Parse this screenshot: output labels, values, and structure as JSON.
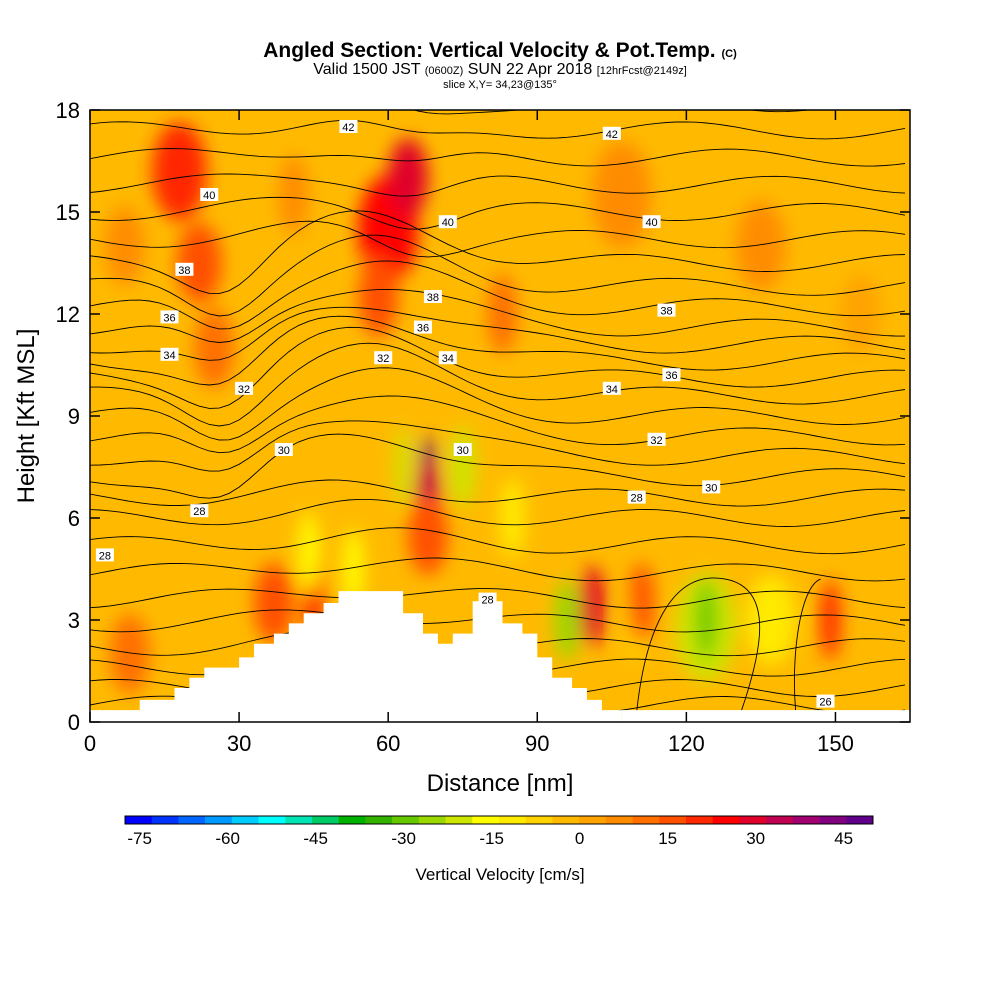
{
  "title": {
    "main": "Angled Section: Vertical Velocity & Pot.Temp.",
    "main_suffix": "(C)",
    "valid_prefix": "Valid 1500 JST",
    "valid_z": "(0600Z)",
    "valid_date": "SUN 22 Apr 2018",
    "valid_fcst": "[12hrFcst@2149z]",
    "slice": "slice X,Y= 34,23@135°"
  },
  "chart_data": {
    "type": "heatmap",
    "xlabel": "Distance [nm]",
    "ylabel": "Height [Kft MSL]",
    "xlim": [
      0,
      165
    ],
    "ylim": [
      0,
      18
    ],
    "x_ticks": [
      "0",
      "30",
      "60",
      "90",
      "120",
      "150"
    ],
    "x_tick_values": [
      0,
      30,
      60,
      90,
      120,
      150
    ],
    "y_ticks": [
      "0",
      "3",
      "6",
      "9",
      "12",
      "15",
      "18"
    ],
    "y_tick_values": [
      0,
      3,
      6,
      9,
      12,
      15,
      18
    ],
    "terrain": [
      [
        0,
        0.35
      ],
      [
        10,
        0.35
      ],
      [
        10,
        0.65
      ],
      [
        17,
        0.65
      ],
      [
        17,
        1.0
      ],
      [
        20,
        1.0
      ],
      [
        20,
        1.3
      ],
      [
        23,
        1.3
      ],
      [
        23,
        1.6
      ],
      [
        30,
        1.6
      ],
      [
        30,
        1.9
      ],
      [
        33,
        1.9
      ],
      [
        33,
        2.3
      ],
      [
        37,
        2.3
      ],
      [
        37,
        2.6
      ],
      [
        40,
        2.6
      ],
      [
        40,
        2.9
      ],
      [
        43,
        2.9
      ],
      [
        43,
        3.2
      ],
      [
        47,
        3.2
      ],
      [
        47,
        3.5
      ],
      [
        50,
        3.5
      ],
      [
        50,
        3.85
      ],
      [
        63,
        3.85
      ],
      [
        63,
        3.2
      ],
      [
        67,
        3.2
      ],
      [
        67,
        2.6
      ],
      [
        70,
        2.6
      ],
      [
        70,
        2.3
      ],
      [
        73,
        2.3
      ],
      [
        73,
        2.6
      ],
      [
        77,
        2.6
      ],
      [
        77,
        3.55
      ],
      [
        83,
        3.55
      ],
      [
        83,
        2.9
      ],
      [
        87,
        2.9
      ],
      [
        87,
        2.6
      ],
      [
        90,
        2.6
      ],
      [
        90,
        1.9
      ],
      [
        93,
        1.9
      ],
      [
        93,
        1.3
      ],
      [
        97,
        1.3
      ],
      [
        97,
        1.0
      ],
      [
        100,
        1.0
      ],
      [
        100,
        0.65
      ],
      [
        103,
        0.65
      ],
      [
        103,
        0.35
      ],
      [
        107,
        0.35
      ],
      [
        107,
        0
      ]
    ],
    "velocity_cells": [
      {
        "x": 18,
        "y": 16.2,
        "w": 11,
        "v": 22
      },
      {
        "x": 22,
        "y": 13.5,
        "w": 9,
        "v": 18
      },
      {
        "x": 25,
        "y": 11,
        "w": 8,
        "v": 12
      },
      {
        "x": 37,
        "y": 3.5,
        "w": 8,
        "v": 18
      },
      {
        "x": 45,
        "y": 3.7,
        "w": 4,
        "v": 22
      },
      {
        "x": 41,
        "y": 15.5,
        "w": 6,
        "v": 8
      },
      {
        "x": 60,
        "y": 14.5,
        "w": 12,
        "v": 26
      },
      {
        "x": 64,
        "y": 16,
        "w": 8,
        "v": 30
      },
      {
        "x": 58,
        "y": 12.5,
        "w": 8,
        "v": 18
      },
      {
        "x": 68,
        "y": 7,
        "w": 3,
        "v": 46
      },
      {
        "x": 68,
        "y": 6.5,
        "w": 5,
        "v": 32
      },
      {
        "x": 68,
        "y": 5.5,
        "w": 8,
        "v": 15
      },
      {
        "x": 63,
        "y": 7.5,
        "w": 3,
        "v": -20
      },
      {
        "x": 75,
        "y": 7.5,
        "w": 5,
        "v": -22
      },
      {
        "x": 44,
        "y": 5,
        "w": 4,
        "v": -18
      },
      {
        "x": 53,
        "y": 4.5,
        "w": 4,
        "v": -18
      },
      {
        "x": 85,
        "y": 6,
        "w": 5,
        "v": -12
      },
      {
        "x": 83,
        "y": 12,
        "w": 6,
        "v": 10
      },
      {
        "x": 96,
        "y": 3,
        "w": 5,
        "v": -25
      },
      {
        "x": 101,
        "y": 3.4,
        "w": 5,
        "v": 28
      },
      {
        "x": 110,
        "y": 3,
        "w": 5,
        "v": -8
      },
      {
        "x": 111,
        "y": 3.5,
        "w": 5,
        "v": 18
      },
      {
        "x": 124,
        "y": 2.8,
        "w": 12,
        "v": -20
      },
      {
        "x": 124,
        "y": 3.0,
        "w": 4,
        "v": -28
      },
      {
        "x": 137,
        "y": 3,
        "w": 10,
        "v": -10
      },
      {
        "x": 149,
        "y": 3,
        "w": 4,
        "v": 20
      },
      {
        "x": 107,
        "y": 15.5,
        "w": 12,
        "v": 6
      },
      {
        "x": 135,
        "y": 14,
        "w": 10,
        "v": 6
      },
      {
        "x": 8,
        "y": 2,
        "w": 8,
        "v": 10
      },
      {
        "x": 7,
        "y": 14,
        "w": 8,
        "v": 6
      },
      {
        "x": 155,
        "y": 12,
        "w": 8,
        "v": 4
      }
    ],
    "contour_labels": [
      {
        "x": 52,
        "y": 17.5,
        "text": "42"
      },
      {
        "x": 105,
        "y": 17.3,
        "text": "42"
      },
      {
        "x": 24,
        "y": 15.5,
        "text": "40"
      },
      {
        "x": 72,
        "y": 14.7,
        "text": "40"
      },
      {
        "x": 113,
        "y": 14.7,
        "text": "40"
      },
      {
        "x": 19,
        "y": 13.3,
        "text": "38"
      },
      {
        "x": 69,
        "y": 12.5,
        "text": "38"
      },
      {
        "x": 116,
        "y": 12.1,
        "text": "38"
      },
      {
        "x": 16,
        "y": 11.9,
        "text": "36"
      },
      {
        "x": 67,
        "y": 11.6,
        "text": "36"
      },
      {
        "x": 117,
        "y": 10.2,
        "text": "36"
      },
      {
        "x": 16,
        "y": 10.8,
        "text": "34"
      },
      {
        "x": 72,
        "y": 10.7,
        "text": "34"
      },
      {
        "x": 105,
        "y": 9.8,
        "text": "34"
      },
      {
        "x": 31,
        "y": 9.8,
        "text": "32"
      },
      {
        "x": 59,
        "y": 10.7,
        "text": "32"
      },
      {
        "x": 114,
        "y": 8.3,
        "text": "32"
      },
      {
        "x": 39,
        "y": 8.0,
        "text": "30"
      },
      {
        "x": 75,
        "y": 8.0,
        "text": "30"
      },
      {
        "x": 125,
        "y": 6.9,
        "text": "30"
      },
      {
        "x": 22,
        "y": 6.2,
        "text": "28"
      },
      {
        "x": 110,
        "y": 6.6,
        "text": "28"
      },
      {
        "x": 80,
        "y": 3.6,
        "text": "28"
      },
      {
        "x": 3,
        "y": 4.9,
        "text": "28"
      },
      {
        "x": 148,
        "y": 0.6,
        "text": "26"
      }
    ],
    "colorbar": {
      "ticks": [
        "-75",
        "-60",
        "-45",
        "-30",
        "-15",
        "0",
        "15",
        "30",
        "45"
      ],
      "tick_values": [
        -75,
        -60,
        -45,
        -30,
        -15,
        0,
        15,
        30,
        45
      ],
      "range": [
        -77.5,
        50
      ],
      "colors": [
        "#0000ff",
        "#0033ff",
        "#0066ff",
        "#0099ff",
        "#00ccff",
        "#00ffff",
        "#00e5b3",
        "#00cc66",
        "#00b200",
        "#33b200",
        "#66c800",
        "#99d800",
        "#cce600",
        "#ffff00",
        "#ffea00",
        "#ffd200",
        "#ffba00",
        "#ffa300",
        "#ff8c00",
        "#ff7000",
        "#ff5000",
        "#ff2800",
        "#ff0000",
        "#e0002a",
        "#c00050",
        "#a00070",
        "#800080",
        "#60008a"
      ],
      "label": "Vertical Velocity [cm/s]"
    }
  }
}
